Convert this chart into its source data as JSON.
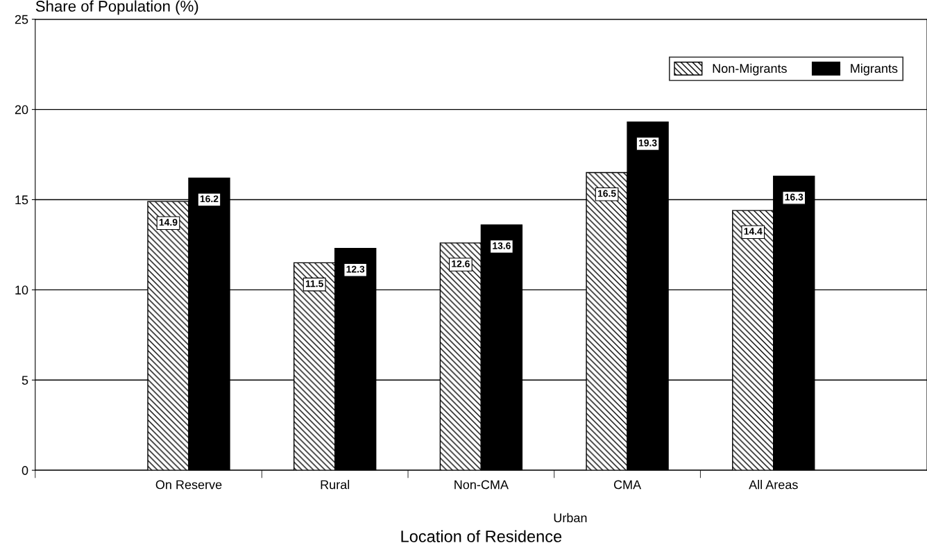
{
  "chart_data": {
    "type": "bar",
    "ylabel": "Share of Population (%)",
    "xlabel": "Location of Residence",
    "categories": [
      "On Reserve",
      "Rural",
      "Non-CMA",
      "CMA",
      "All Areas"
    ],
    "series": [
      {
        "name": "Non-Migrants",
        "color": "#000000",
        "values": [
          14.9,
          11.5,
          12.6,
          16.5,
          14.4
        ]
      },
      {
        "name": "Migrants",
        "color": "#000000",
        "values": [
          16.2,
          12.3,
          13.6,
          19.3,
          16.3
        ]
      }
    ],
    "annotations": [
      "Urban"
    ],
    "ylim": [
      0,
      25
    ],
    "yticks": [
      0,
      5,
      10,
      15,
      20,
      25
    ],
    "grid": "y",
    "legend": "top right",
    "data_labels": true
  }
}
